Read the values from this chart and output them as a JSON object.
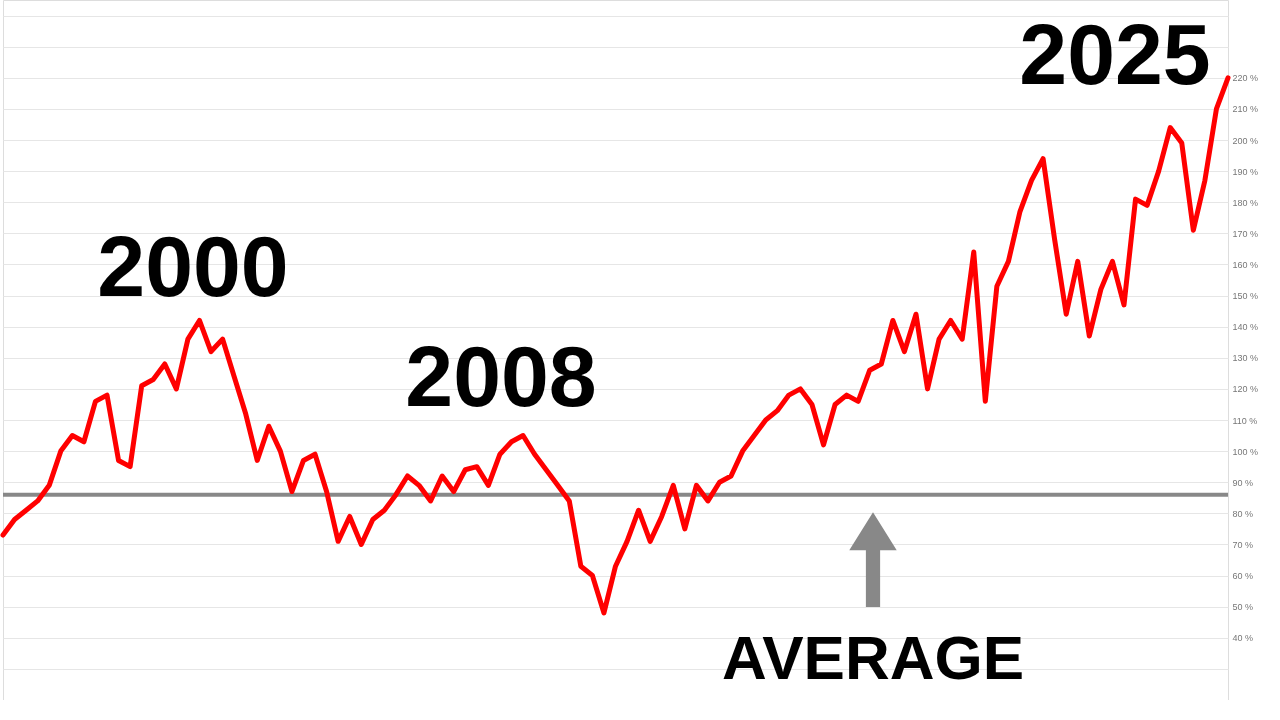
{
  "chart_data": {
    "type": "line",
    "categories": [
      null,
      null,
      null,
      null,
      null,
      null,
      null,
      null,
      null,
      null,
      null,
      null,
      null,
      null,
      null,
      null,
      null,
      null,
      null,
      null,
      null,
      null,
      null,
      null,
      null,
      null,
      null,
      null,
      null,
      null,
      null,
      null,
      null,
      null,
      null,
      null,
      null,
      null,
      null,
      null,
      null,
      null,
      null,
      null,
      null,
      null,
      null,
      null,
      null,
      null,
      null,
      null,
      null,
      null,
      null,
      null,
      null,
      null,
      null,
      null,
      null,
      null,
      null,
      null,
      null,
      null,
      null,
      null,
      null,
      null,
      null,
      null,
      null,
      null,
      null,
      null,
      null,
      null,
      null,
      null,
      null,
      null,
      null,
      null,
      null,
      null,
      null,
      null,
      null,
      null,
      null,
      null,
      null,
      null,
      null,
      null,
      null,
      null,
      null,
      null,
      null,
      null,
      null,
      null,
      null,
      null,
      null
    ],
    "series": [
      {
        "color": "#ff0000",
        "values": [
          73,
          78,
          81,
          84,
          89,
          100,
          105,
          103,
          116,
          118,
          97,
          95,
          121,
          123,
          128,
          120,
          136,
          142,
          132,
          136,
          124,
          112,
          97,
          108,
          100,
          87,
          97,
          99,
          87,
          71,
          79,
          70,
          78,
          81,
          86,
          92,
          89,
          84,
          92,
          87,
          94,
          95,
          89,
          99,
          103,
          105,
          99,
          94,
          89,
          84,
          63,
          60,
          48,
          63,
          71,
          81,
          71,
          79,
          89,
          75,
          89,
          84,
          90,
          92,
          100,
          105,
          110,
          113,
          118,
          120,
          115,
          102,
          115,
          118,
          116,
          126,
          128,
          142,
          132,
          144,
          120,
          136,
          142,
          136,
          164,
          116,
          153,
          161,
          177,
          187,
          194,
          168,
          144,
          161,
          137,
          152,
          161,
          147,
          181,
          179,
          190,
          204,
          199,
          171,
          187,
          210,
          220
        ]
      }
    ],
    "ylim": [
      20,
      245
    ],
    "yticks": [
      {
        "value": 30,
        "label": null
      },
      {
        "value": 40,
        "label": "40 %"
      },
      {
        "value": 50,
        "label": "50 %"
      },
      {
        "value": 60,
        "label": "60 %"
      },
      {
        "value": 70,
        "label": "70 %"
      },
      {
        "value": 80,
        "label": "80 %"
      },
      {
        "value": 90,
        "label": "90 %"
      },
      {
        "value": 100,
        "label": "100 %"
      },
      {
        "value": 110,
        "label": "110 %"
      },
      {
        "value": 120,
        "label": "120 %"
      },
      {
        "value": 130,
        "label": "130 %"
      },
      {
        "value": 140,
        "label": "140 %"
      },
      {
        "value": 150,
        "label": "150 %"
      },
      {
        "value": 160,
        "label": "160 %"
      },
      {
        "value": 170,
        "label": "170 %"
      },
      {
        "value": 180,
        "label": "180 %"
      },
      {
        "value": 190,
        "label": "190 %"
      },
      {
        "value": 200,
        "label": "200 %"
      },
      {
        "value": 210,
        "label": "210 %"
      },
      {
        "value": 220,
        "label": "220 %"
      },
      {
        "value": 230,
        "label": null
      },
      {
        "value": 240,
        "label": null
      }
    ],
    "grid": "y",
    "tick_labels": "y",
    "marker": "none",
    "line_style": "solid",
    "ref_lines": [
      {
        "axis": "y",
        "value": 86,
        "label": "AVERAGE",
        "color": "#888888"
      }
    ],
    "annotations": [
      "2000",
      "2008",
      "2025"
    ]
  }
}
